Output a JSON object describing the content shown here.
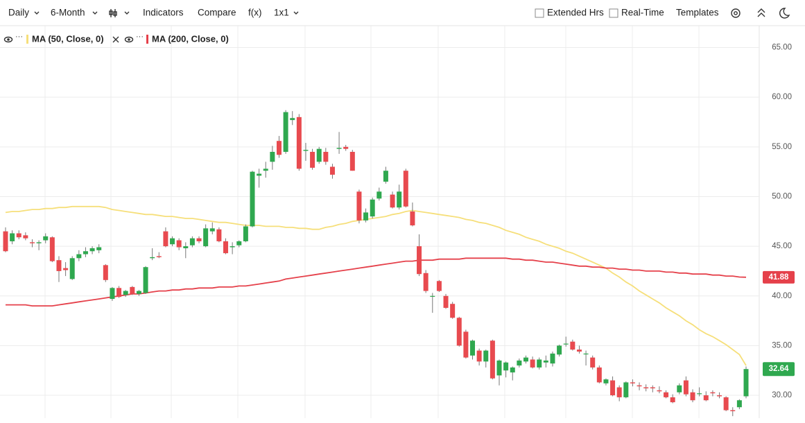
{
  "toolbar": {
    "interval": "Daily",
    "period": "6-Month",
    "indicators": "Indicators",
    "compare": "Compare",
    "fx": "f(x)",
    "layout": "1x1",
    "extended_hours": "Extended Hrs",
    "real_time": "Real-Time",
    "templates": "Templates"
  },
  "chart_data": {
    "type": "candlestick",
    "up_color": "#2fa84f",
    "down_color": "#e84a4f",
    "grid": true,
    "ylim": [
      27.7,
      67.2
    ],
    "yticks": [
      {
        "value": 30,
        "label": "30.00"
      },
      {
        "value": 35,
        "label": "35.00"
      },
      {
        "value": 40,
        "label": "40.00"
      },
      {
        "value": 45,
        "label": "45.00"
      },
      {
        "value": 50,
        "label": "50.00"
      },
      {
        "value": 55,
        "label": "55.00"
      },
      {
        "value": 60,
        "label": "60.00"
      },
      {
        "value": 65,
        "label": "65.00"
      }
    ],
    "open": [
      46.5,
      45.5,
      46.3,
      46.1,
      45.4,
      45.3,
      45.6,
      45.9,
      43.6,
      42.8,
      41.7,
      43.8,
      44.2,
      44.5,
      44.6,
      43.1,
      39.7,
      40.8,
      40.1,
      40.9,
      40.2,
      40.3,
      43.8,
      44.0,
      46.5,
      45.2,
      45.6,
      44.8,
      45.1,
      45.8,
      45.0,
      46.5,
      46.7,
      45.5,
      44.9,
      45.1,
      45.5,
      47.0,
      52.1,
      52.6,
      53.5,
      55.6,
      54.5,
      57.7,
      58.0,
      54.6,
      54.5,
      53.5,
      54.5,
      53.0,
      54.8,
      55.0,
      54.5,
      50.5,
      47.6,
      48.0,
      49.8,
      51.5,
      50.2,
      48.9,
      52.6,
      48.5,
      45.0,
      42.3,
      40.0,
      41.5,
      40.0,
      39.2,
      37.8,
      36.4,
      34.0,
      34.5,
      33.4,
      35.5,
      32.0,
      32.5,
      32.3,
      33.0,
      33.4,
      33.6,
      32.8,
      33.3,
      33.2,
      34.1,
      35.2,
      35.4,
      34.6,
      34.2,
      33.8,
      32.8,
      31.2,
      31.5,
      30.8,
      29.8,
      31.3,
      31.0,
      30.8,
      30.8,
      30.5,
      30.3,
      29.8,
      30.3,
      31.5,
      30.3,
      30.2,
      30.0,
      30.3,
      30.0,
      29.8,
      28.5,
      28.8,
      29.9
    ],
    "high": [
      46.9,
      46.6,
      46.6,
      46.4,
      45.7,
      45.6,
      46.3,
      46.0,
      44.0,
      43.4,
      44.0,
      44.6,
      44.9,
      45.0,
      45.2,
      43.2,
      40.9,
      41.0,
      40.6,
      41.0,
      40.6,
      43.0,
      44.8,
      44.4,
      46.9,
      46.0,
      45.8,
      45.4,
      46.0,
      46.0,
      47.2,
      47.4,
      46.9,
      45.8,
      45.4,
      45.6,
      47.2,
      52.6,
      52.8,
      53.5,
      55.1,
      56.1,
      58.7,
      58.6,
      58.3,
      55.4,
      54.8,
      55.0,
      54.9,
      53.3,
      56.5,
      55.2,
      54.7,
      50.7,
      48.8,
      49.9,
      50.9,
      53.0,
      50.5,
      51.2,
      52.8,
      49.4,
      46.2,
      42.6,
      40.3,
      41.6,
      40.2,
      39.4,
      37.9,
      36.6,
      35.6,
      34.7,
      34.6,
      35.6,
      33.6,
      33.4,
      32.9,
      33.7,
      34.0,
      33.9,
      33.8,
      34.0,
      34.4,
      35.1,
      35.9,
      35.6,
      35.0,
      34.5,
      34.0,
      33.0,
      31.7,
      31.9,
      31.0,
      31.4,
      31.6,
      31.3,
      31.1,
      31.0,
      30.9,
      30.5,
      30.1,
      31.2,
      31.9,
      30.6,
      30.8,
      30.4,
      30.5,
      30.3,
      29.9,
      28.8,
      29.6,
      32.9
    ],
    "low": [
      44.4,
      45.2,
      45.7,
      45.6,
      44.9,
      44.6,
      45.3,
      43.4,
      41.4,
      42.0,
      41.6,
      43.5,
      43.9,
      44.2,
      44.3,
      41.4,
      39.5,
      39.8,
      39.9,
      40.1,
      40.0,
      40.2,
      43.6,
      43.8,
      44.9,
      45.0,
      44.6,
      43.8,
      44.9,
      45.3,
      44.9,
      46.2,
      45.4,
      44.2,
      44.2,
      44.9,
      45.4,
      46.9,
      50.9,
      51.9,
      52.7,
      53.9,
      54.3,
      57.2,
      52.6,
      53.6,
      52.7,
      53.3,
      53.2,
      51.8,
      54.3,
      54.6,
      52.6,
      47.3,
      47.4,
      47.8,
      49.6,
      51.3,
      48.8,
      48.7,
      48.9,
      47.0,
      42.0,
      40.3,
      38.3,
      40.4,
      38.7,
      37.7,
      34.9,
      33.7,
      33.6,
      33.0,
      32.8,
      31.6,
      31.0,
      31.8,
      31.5,
      32.8,
      33.2,
      32.7,
      32.6,
      32.8,
      32.9,
      33.9,
      34.9,
      34.5,
      34.2,
      33.0,
      32.6,
      31.2,
      31.0,
      29.9,
      29.4,
      29.7,
      30.9,
      30.5,
      30.4,
      30.3,
      30.2,
      29.7,
      29.2,
      30.1,
      29.9,
      29.3,
      29.9,
      29.4,
      29.9,
      29.7,
      28.4,
      27.9,
      28.6,
      29.7
    ],
    "close": [
      44.5,
      46.3,
      45.9,
      45.8,
      45.3,
      45.4,
      46.0,
      43.5,
      42.5,
      42.6,
      43.8,
      44.2,
      44.5,
      44.8,
      44.9,
      41.6,
      40.8,
      39.9,
      40.5,
      40.2,
      40.5,
      42.9,
      43.9,
      43.9,
      45.0,
      45.8,
      44.9,
      45.0,
      45.8,
      45.5,
      46.8,
      46.8,
      45.5,
      44.3,
      45.0,
      45.5,
      47.0,
      52.5,
      52.3,
      52.8,
      54.5,
      54.2,
      58.5,
      57.9,
      52.8,
      54.7,
      52.9,
      54.8,
      53.5,
      52.2,
      54.9,
      54.8,
      52.6,
      47.6,
      48.4,
      49.7,
      50.5,
      52.6,
      48.9,
      50.5,
      49.0,
      47.1,
      42.2,
      40.5,
      40.0,
      40.5,
      38.8,
      37.8,
      35.0,
      33.8,
      35.5,
      33.4,
      34.5,
      31.7,
      33.5,
      33.3,
      32.8,
      33.5,
      33.8,
      32.8,
      33.6,
      33.5,
      34.2,
      35.0,
      35.2,
      34.6,
      34.4,
      34.2,
      32.8,
      31.3,
      31.6,
      30.0,
      29.8,
      31.3,
      31.2,
      30.9,
      30.7,
      30.7,
      30.4,
      29.8,
      29.3,
      31.0,
      30.1,
      29.5,
      30.2,
      29.5,
      30.2,
      29.9,
      28.5,
      28.4,
      29.5,
      32.64
    ],
    "series": [
      {
        "name": "MA (50, Close, 0)",
        "color": "#f6df7a",
        "values": [
          48.4,
          48.5,
          48.5,
          48.6,
          48.7,
          48.7,
          48.8,
          48.8,
          48.9,
          48.9,
          49.0,
          49.0,
          49.0,
          49.0,
          49.0,
          48.9,
          48.7,
          48.6,
          48.5,
          48.4,
          48.3,
          48.2,
          48.2,
          48.1,
          48.0,
          48.0,
          47.9,
          47.8,
          47.8,
          47.7,
          47.6,
          47.5,
          47.4,
          47.4,
          47.3,
          47.2,
          47.1,
          47.1,
          47.1,
          47.0,
          47.0,
          47.0,
          46.9,
          46.9,
          46.8,
          46.8,
          46.7,
          46.7,
          46.9,
          47.0,
          47.2,
          47.3,
          47.5,
          47.6,
          47.7,
          47.8,
          47.9,
          48.0,
          48.2,
          48.3,
          48.5,
          48.6,
          48.5,
          48.4,
          48.3,
          48.2,
          48.1,
          48.0,
          47.9,
          47.7,
          47.6,
          47.4,
          47.3,
          47.1,
          46.9,
          46.6,
          46.4,
          46.2,
          45.9,
          45.7,
          45.5,
          45.2,
          45.0,
          44.8,
          44.5,
          44.3,
          44.0,
          43.7,
          43.4,
          43.1,
          42.8,
          42.3,
          41.9,
          41.4,
          41.0,
          40.5,
          40.1,
          39.7,
          39.3,
          38.8,
          38.4,
          38.0,
          37.5,
          37.1,
          36.6,
          36.2,
          35.9,
          35.5,
          35.1,
          34.6,
          34.1,
          33.0
        ]
      },
      {
        "name": "MA (200, Close, 0)",
        "color": "#e5404a",
        "values": [
          39.1,
          39.1,
          39.1,
          39.1,
          39.0,
          39.0,
          39.0,
          39.0,
          39.1,
          39.2,
          39.3,
          39.4,
          39.5,
          39.6,
          39.7,
          39.8,
          39.9,
          40.0,
          40.1,
          40.2,
          40.2,
          40.3,
          40.4,
          40.5,
          40.5,
          40.6,
          40.6,
          40.7,
          40.7,
          40.8,
          40.8,
          40.8,
          40.9,
          40.9,
          40.9,
          41.0,
          41.0,
          41.1,
          41.2,
          41.3,
          41.4,
          41.5,
          41.7,
          41.8,
          41.9,
          42.0,
          42.1,
          42.2,
          42.3,
          42.4,
          42.5,
          42.6,
          42.7,
          42.8,
          42.9,
          43.0,
          43.1,
          43.2,
          43.3,
          43.4,
          43.5,
          43.5,
          43.6,
          43.6,
          43.6,
          43.7,
          43.7,
          43.7,
          43.7,
          43.8,
          43.8,
          43.8,
          43.8,
          43.8,
          43.8,
          43.8,
          43.7,
          43.7,
          43.6,
          43.6,
          43.5,
          43.4,
          43.4,
          43.3,
          43.2,
          43.1,
          43.0,
          43.0,
          42.9,
          42.9,
          42.8,
          42.8,
          42.7,
          42.7,
          42.6,
          42.6,
          42.5,
          42.5,
          42.5,
          42.4,
          42.4,
          42.3,
          42.3,
          42.2,
          42.2,
          42.2,
          42.1,
          42.1,
          42.0,
          42.0,
          41.9,
          41.88
        ]
      }
    ]
  }
}
